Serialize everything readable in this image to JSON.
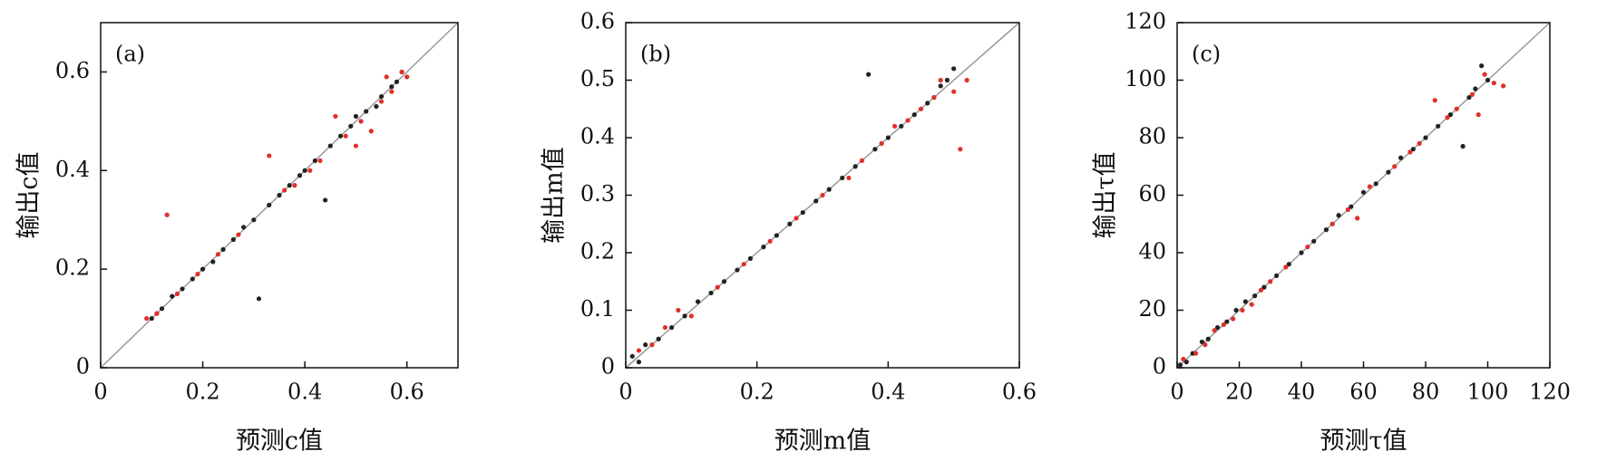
{
  "chart_data": [
    {
      "type": "scatter",
      "panel_label": "(a)",
      "xlabel": "预测c值",
      "ylabel": "输出c值",
      "xlim": [
        0,
        0.7
      ],
      "ylim": [
        0,
        0.7
      ],
      "xticks": [
        0,
        0.2,
        0.4,
        0.6
      ],
      "yticks": [
        0,
        0.2,
        0.4,
        0.6
      ],
      "series": [
        {
          "color": "#222222",
          "x": [
            0.1,
            0.11,
            0.12,
            0.14,
            0.16,
            0.18,
            0.2,
            0.22,
            0.24,
            0.26,
            0.28,
            0.3,
            0.31,
            0.33,
            0.35,
            0.37,
            0.39,
            0.4,
            0.42,
            0.44,
            0.45,
            0.47,
            0.49,
            0.5,
            0.52,
            0.54,
            0.55,
            0.57,
            0.58,
            0.59
          ],
          "values": [
            0.1,
            0.11,
            0.12,
            0.145,
            0.16,
            0.18,
            0.2,
            0.215,
            0.24,
            0.26,
            0.285,
            0.3,
            0.14,
            0.33,
            0.35,
            0.37,
            0.39,
            0.4,
            0.42,
            0.34,
            0.45,
            0.47,
            0.49,
            0.51,
            0.52,
            0.53,
            0.55,
            0.57,
            0.58,
            0.6
          ]
        },
        {
          "color": "#e0302a",
          "x": [
            0.09,
            0.11,
            0.13,
            0.15,
            0.19,
            0.23,
            0.27,
            0.33,
            0.36,
            0.38,
            0.41,
            0.43,
            0.46,
            0.48,
            0.5,
            0.51,
            0.53,
            0.55,
            0.56,
            0.57,
            0.59,
            0.6
          ],
          "values": [
            0.1,
            0.11,
            0.31,
            0.15,
            0.19,
            0.23,
            0.27,
            0.43,
            0.36,
            0.37,
            0.4,
            0.42,
            0.51,
            0.47,
            0.45,
            0.5,
            0.48,
            0.54,
            0.59,
            0.56,
            0.6,
            0.59
          ]
        }
      ]
    },
    {
      "type": "scatter",
      "panel_label": "(b)",
      "xlabel": "预测m值",
      "ylabel": "输出m值",
      "xlim": [
        0,
        0.6
      ],
      "ylim": [
        0,
        0.6
      ],
      "xticks": [
        0,
        0.2,
        0.4,
        0.6
      ],
      "yticks": [
        0,
        0.1,
        0.2,
        0.3,
        0.4,
        0.5,
        0.6
      ],
      "series": [
        {
          "color": "#222222",
          "x": [
            0.01,
            0.02,
            0.03,
            0.05,
            0.07,
            0.09,
            0.11,
            0.13,
            0.15,
            0.17,
            0.19,
            0.21,
            0.23,
            0.25,
            0.27,
            0.29,
            0.31,
            0.33,
            0.35,
            0.37,
            0.38,
            0.4,
            0.42,
            0.44,
            0.46,
            0.47,
            0.48,
            0.49,
            0.5
          ],
          "values": [
            0.02,
            0.01,
            0.04,
            0.05,
            0.07,
            0.09,
            0.115,
            0.13,
            0.15,
            0.17,
            0.19,
            0.21,
            0.23,
            0.25,
            0.27,
            0.29,
            0.31,
            0.33,
            0.35,
            0.51,
            0.38,
            0.4,
            0.42,
            0.44,
            0.46,
            0.47,
            0.49,
            0.5,
            0.52
          ]
        },
        {
          "color": "#e0302a",
          "x": [
            0.02,
            0.04,
            0.06,
            0.08,
            0.1,
            0.14,
            0.18,
            0.22,
            0.26,
            0.3,
            0.34,
            0.36,
            0.39,
            0.41,
            0.43,
            0.45,
            0.47,
            0.48,
            0.5,
            0.51,
            0.52
          ],
          "values": [
            0.03,
            0.04,
            0.07,
            0.1,
            0.09,
            0.14,
            0.18,
            0.22,
            0.26,
            0.3,
            0.33,
            0.36,
            0.39,
            0.42,
            0.43,
            0.45,
            0.47,
            0.5,
            0.48,
            0.38,
            0.5
          ]
        }
      ]
    },
    {
      "type": "scatter",
      "panel_label": "(c)",
      "xlabel": "预测τ值",
      "ylabel": "输出τ值",
      "xlim": [
        0,
        120
      ],
      "ylim": [
        0,
        120
      ],
      "xticks": [
        0,
        20,
        40,
        60,
        80,
        100,
        120
      ],
      "yticks": [
        0,
        20,
        40,
        60,
        80,
        100,
        120
      ],
      "series": [
        {
          "color": "#222222",
          "x": [
            1,
            3,
            5,
            8,
            10,
            13,
            16,
            19,
            22,
            25,
            28,
            32,
            36,
            40,
            44,
            48,
            52,
            56,
            60,
            64,
            68,
            72,
            76,
            80,
            84,
            88,
            92,
            94,
            96,
            98,
            100
          ],
          "values": [
            1,
            2,
            5,
            9,
            10,
            14,
            16,
            20,
            23,
            25,
            28,
            32,
            36,
            40,
            44,
            48,
            53,
            56,
            61,
            64,
            68,
            73,
            76,
            80,
            84,
            88,
            77,
            94,
            97,
            105,
            100
          ]
        },
        {
          "color": "#e0302a",
          "x": [
            2,
            6,
            9,
            12,
            15,
            18,
            21,
            24,
            27,
            30,
            35,
            42,
            50,
            55,
            58,
            62,
            70,
            75,
            78,
            83,
            87,
            90,
            95,
            97,
            99,
            102,
            105
          ],
          "values": [
            3,
            5,
            8,
            13,
            15,
            17,
            20,
            22,
            27,
            30,
            35,
            42,
            50,
            55,
            52,
            63,
            70,
            75,
            78,
            93,
            87,
            90,
            95,
            88,
            102,
            99,
            98
          ]
        }
      ]
    }
  ]
}
